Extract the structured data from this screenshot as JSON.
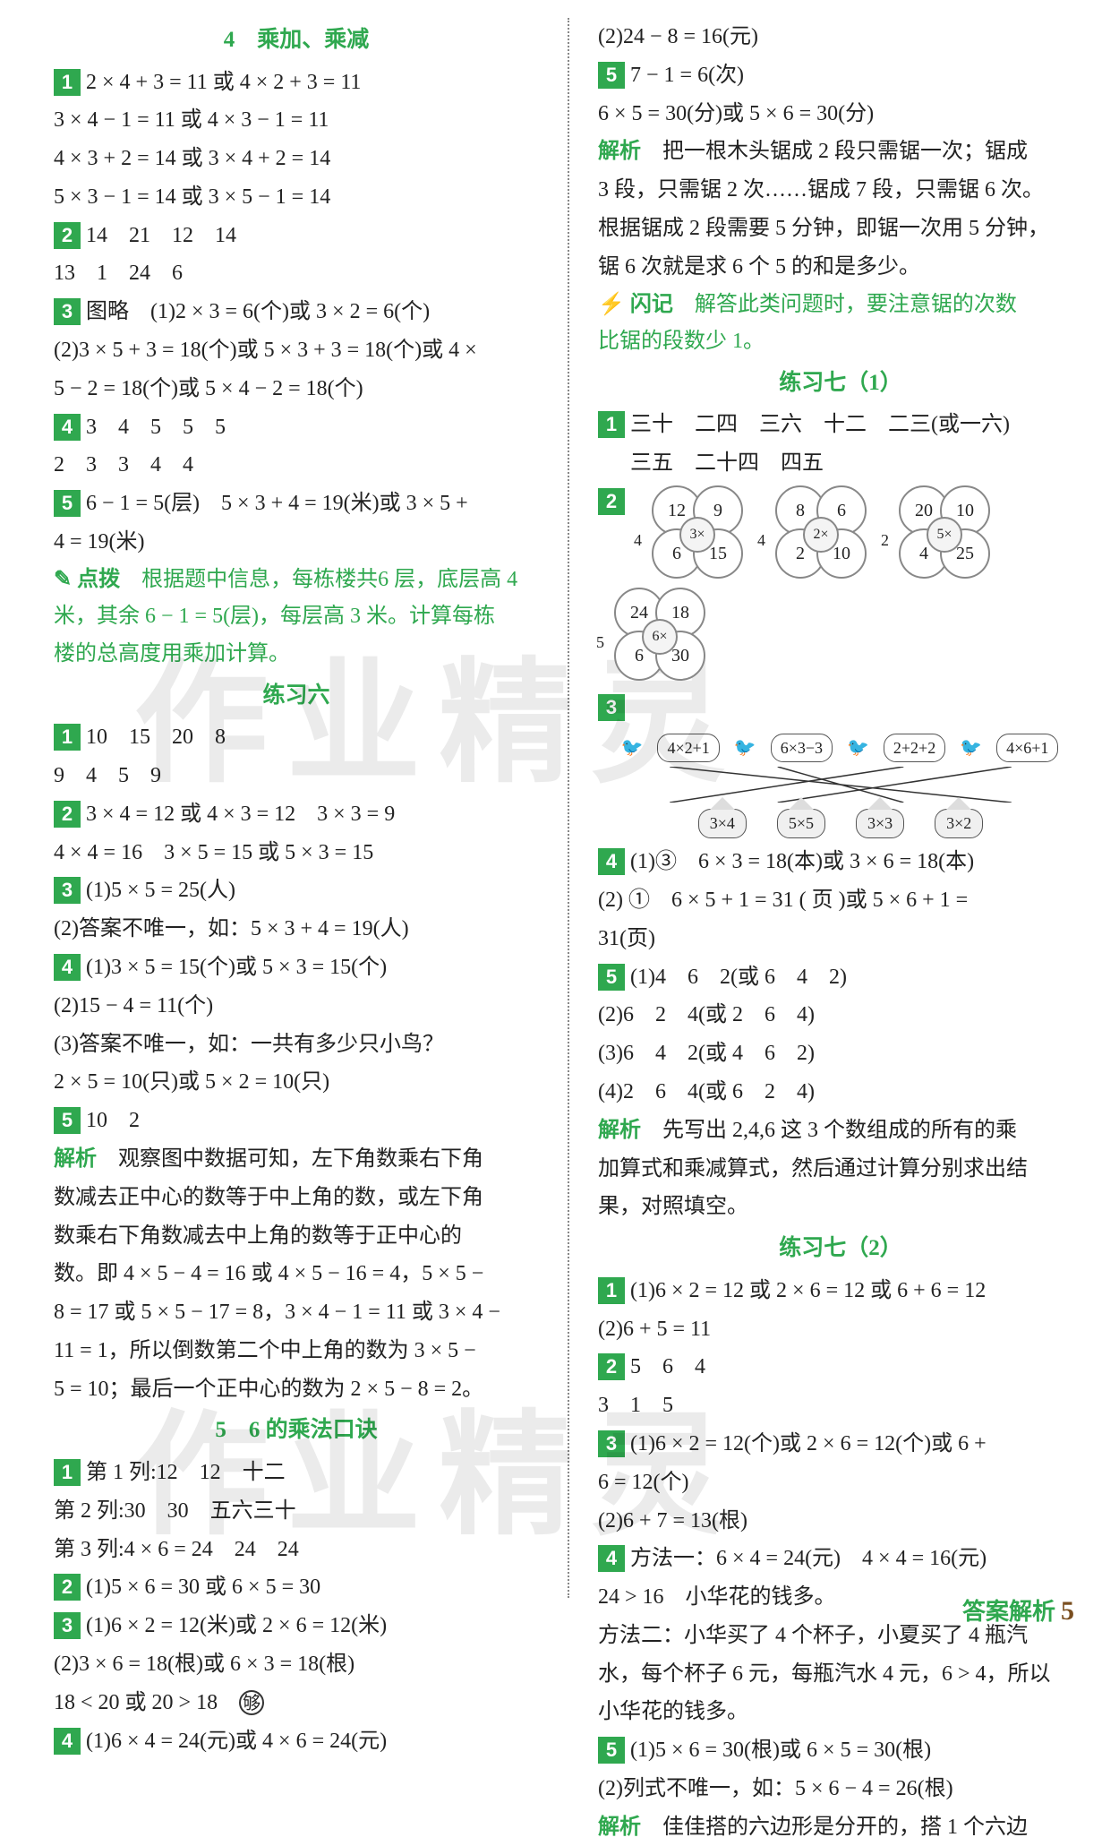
{
  "left": {
    "sec4_title": "4　乘加、乘减",
    "s4_q1_1": "2 × 4 + 3 = 11 或 4 × 2 + 3 = 11",
    "s4_q1_2": "3 × 4 − 1 = 11 或 4 × 3 − 1 = 11",
    "s4_q1_3": "4 × 3 + 2 = 14 或 3 × 4 + 2 = 14",
    "s4_q1_4": "5 × 3 − 1 = 14 或 3 × 5 − 1 = 14",
    "s4_q2_1": "14　21　12　14",
    "s4_q2_2": "13　1　24　6",
    "s4_q3_1": "图略　(1)2 × 3 = 6(个)或 3 × 2 = 6(个)",
    "s4_q3_2": "(2)3 × 5 + 3 = 18(个)或 5 × 3 + 3 = 18(个)或 4 ×",
    "s4_q3_3": "5 − 2 = 18(个)或 5 × 4 − 2 = 18(个)",
    "s4_q4_1": "3　4　5　5　5",
    "s4_q4_2": "2　3　3　4　4",
    "s4_q5_1": "6 − 1 = 5(层)　5 × 3 + 4 = 19(米)或 3 × 5 +",
    "s4_q5_2": "4 = 19(米)",
    "s4_tip1_label": "点拨",
    "s4_tip1_1": "根据题中信息，每栋楼共6 层，底层高 4",
    "s4_tip1_2": "米，其余 6 − 1 = 5(层)，每层高 3 米。计算每栋",
    "s4_tip1_3": "楼的总高度用乘加计算。",
    "ex6_title": "练习六",
    "e6_q1_1": "10　15　20　8",
    "e6_q1_2": "9　4　5　9",
    "e6_q2_1": "3 × 4 = 12 或 4 × 3 = 12　3 × 3 = 9",
    "e6_q2_2": "4 × 4 = 16　3 × 5 = 15 或 5 × 3 = 15",
    "e6_q3_1": "(1)5 × 5 = 25(人)",
    "e6_q3_2": "(2)答案不唯一，如：5 × 3 + 4 = 19(人)",
    "e6_q4_1": "(1)3 × 5 = 15(个)或 5 × 3 = 15(个)",
    "e6_q4_2": "(2)15 − 4 = 11(个)",
    "e6_q4_3": "(3)答案不唯一，如：一共有多少只小鸟？",
    "e6_q4_4": "2 × 5 = 10(只)或 5 × 2 = 10(只)",
    "e6_q5_1": "10　2",
    "e6_jx_label": "解析",
    "e6_jx_1": "观察图中数据可知，左下角数乘右下角",
    "e6_jx_2": "数减去正中心的数等于中上角的数，或左下角",
    "e6_jx_3": "数乘右下角数减去中上角的数等于正中心的",
    "e6_jx_4": "数。即 4 × 5 − 4 = 16 或 4 × 5 − 16 = 4，5 × 5 −",
    "e6_jx_5": "8 = 17 或 5 × 5 − 17 = 8，3 × 4 − 1 = 11 或 3 × 4 −",
    "e6_jx_6": "11 = 1，所以倒数第二个中上角的数为 3 × 5 −",
    "e6_jx_7": "5 = 10；最后一个正中心的数为 2 × 5 − 8 = 2。",
    "sec5_title": "5　6 的乘法口诀",
    "s5_q1_1": "第 1 列:12　12　十二",
    "s5_q1_2": "第 2 列:30　30　五六三十",
    "s5_q1_3": "第 3 列:4 × 6 = 24　24　24",
    "s5_q2_1": "(1)5 × 6 = 30 或 6 × 5 = 30",
    "s5_q3_1": "(1)6 × 2 = 12(米)或 2 × 6 = 12(米)",
    "s5_q3_2": "(2)3 × 6 = 18(根)或 6 × 3 = 18(根)",
    "s5_q3_3": "18 < 20 或 20 > 18",
    "s5_q3_gou": "够",
    "s5_q4_1": "(1)6 × 4 = 24(元)或 4 × 6 = 24(元)"
  },
  "right": {
    "r1_1": "(2)24 − 8 = 16(元)",
    "r5_1": "7 − 1 = 6(次)",
    "r5_2": "6 × 5 = 30(分)或 5 × 6 = 30(分)",
    "r5_jx_label": "解析",
    "r5_jx_1": "把一根木头锯成 2 段只需锯一次；锯成",
    "r5_jx_2": "3 段，只需锯 2 次……锯成 7 段，只需锯 6 次。",
    "r5_jx_3": "根据锯成 2 段需要 5 分钟，即锯一次用 5 分钟，",
    "r5_jx_4": "锯 6 次就是求 6 个 5 的和是多少。",
    "r5_sj_label": "闪记",
    "r5_sj_1": "解答此类问题时，要注意锯的次数",
    "r5_sj_2": "比锯的段数少 1。",
    "ex7a_title": "练习七（1）",
    "e7a_q1_1": "三十　二四　三六　十二　二三(或一六)",
    "e7a_q1_2": "三五　二十四　四五",
    "circles": [
      {
        "c": "3×",
        "n": [
          "12",
          "9",
          "4",
          "6",
          "15"
        ]
      },
      {
        "c": "2×",
        "n": [
          "8",
          "6",
          "4",
          "2",
          "10"
        ]
      },
      {
        "c": "5×",
        "n": [
          "20",
          "10",
          "2",
          "4",
          "25"
        ]
      },
      {
        "c": "6×",
        "n": [
          "24",
          "18",
          "5",
          "6",
          "30"
        ]
      }
    ],
    "fig3_top": [
      "4×2+1",
      "6×3−3",
      "2+2+2",
      "4×6+1"
    ],
    "fig3_bottom": [
      "3×4",
      "5×5",
      "3×3",
      "3×2"
    ],
    "e7a_q4_1": "(1)③　6 × 3 = 18(本)或 3 × 6 = 18(本)",
    "e7a_q4_2": "(2) ①　6 × 5 + 1 = 31 ( 页 )或 5 × 6 + 1 =",
    "e7a_q4_3": "31(页)",
    "e7a_q5_1": "(1)4　6　2(或 6　4　2)",
    "e7a_q5_2": "(2)6　2　4(或 2　6　4)",
    "e7a_q5_3": "(3)6　4　2(或 4　6　2)",
    "e7a_q5_4": "(4)2　6　4(或 6　2　4)",
    "e7a_jx_label": "解析",
    "e7a_jx_1": "先写出 2,4,6 这 3 个数组成的所有的乘",
    "e7a_jx_2": "加算式和乘减算式，然后通过计算分别求出结",
    "e7a_jx_3": "果，对照填空。",
    "ex7b_title": "练习七（2）",
    "e7b_q1_1": "(1)6 × 2 = 12 或 2 × 6 = 12 或 6 + 6 = 12",
    "e7b_q1_2": "(2)6 + 5 = 11",
    "e7b_q2_1": "5　6　4",
    "e7b_q2_2": "3　1　5",
    "e7b_q3_1": "(1)6 × 2 = 12(个)或 2 × 6 = 12(个)或 6 +",
    "e7b_q3_2": "6 = 12(个)",
    "e7b_q3_3": "(2)6 + 7 = 13(根)",
    "e7b_q4_1": "方法一：6 × 4 = 24(元)　4 × 4 = 16(元)",
    "e7b_q4_2": "24 > 16　小华花的钱多。",
    "e7b_q4_3": "方法二：小华买了 4 个杯子，小夏买了 4 瓶汽",
    "e7b_q4_4": "水，每个杯子 6 元，每瓶汽水 4 元，6 > 4，所以",
    "e7b_q4_5": "小华花的钱多。",
    "e7b_q5_1": "(1)5 × 6 = 30(根)或 6 × 5 = 30(根)",
    "e7b_q5_2": "(2)列式不唯一，如：5 × 6 − 4 = 26(根)",
    "e7b_jx_label": "解析",
    "e7b_jx_1": "佳佳搭的六边形是分开的，搭 1 个六边"
  },
  "footer": {
    "label": "答案解析",
    "num": "5"
  },
  "watermark": "作业精灵"
}
